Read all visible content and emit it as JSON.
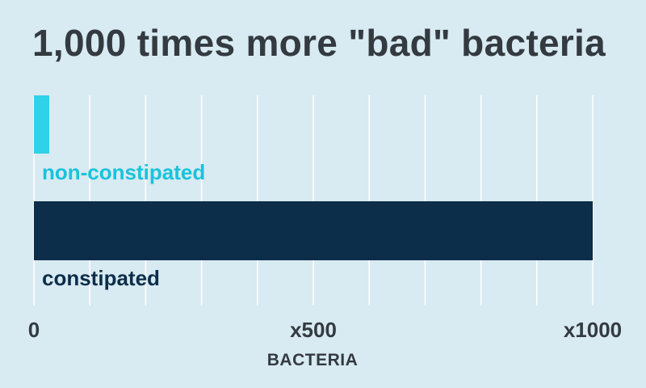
{
  "chart_data": {
    "type": "bar",
    "orientation": "horizontal",
    "title": "1,000 times more \"bad\" bacteria",
    "xlabel": "BACTERIA",
    "ylabel": "",
    "categories": [
      "non-constipated",
      "constipated"
    ],
    "values": [
      1,
      1000
    ],
    "colors": [
      "#2fd3e8",
      "#0d2e4a"
    ],
    "label_colors": [
      "#19c3db",
      "#0d2e4a"
    ],
    "xlim": [
      0,
      1000
    ],
    "ticks": [
      {
        "value": 0,
        "label": "0"
      },
      {
        "value": 500,
        "label": "x500"
      },
      {
        "value": 1000,
        "label": "x1000"
      }
    ],
    "grid": true,
    "grid_color": "#ffffff",
    "text_color": "#333a40"
  }
}
